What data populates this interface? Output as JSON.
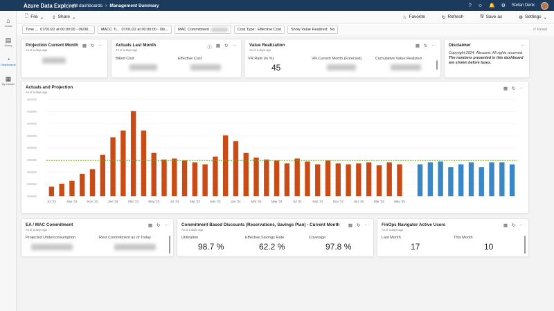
{
  "app": {
    "name": "Azure Data Explorer"
  },
  "breadcrumb": {
    "root": "All dashboards",
    "current": "Management Summary"
  },
  "header": {
    "user_name": "Stefan Denk"
  },
  "sidebar": {
    "items": [
      {
        "label": "Home",
        "icon": "home-icon"
      },
      {
        "label": "Query",
        "icon": "query-icon"
      },
      {
        "label": "Dashboards",
        "icon": "dashboard-icon"
      },
      {
        "label": "My Cluster",
        "icon": "cluster-icon"
      }
    ]
  },
  "toolbar": {
    "file": "File",
    "share": "Share",
    "favorite": "Favorite",
    "refresh": "Refresh",
    "save_as": "Save as",
    "settings": "Settings"
  },
  "filters": {
    "time_label": "Time ...",
    "time_value": "07/01/22 at 00:00:00 - 06/30...",
    "macc_label": "MACC Ti...",
    "macc_value": "07/01/22 at 00:00:00 - 06/...",
    "mac_commitment_label": "MAC Commitment",
    "cost_type_label": "Cost Type:",
    "cost_type_value": "Effective Cost",
    "show_value_label": "Show Value Realized:",
    "show_value_value": "No",
    "reset": "Reset"
  },
  "cards": {
    "projection": {
      "title": "Projection Current Month",
      "sub": "As of a days ago"
    },
    "actuals_last": {
      "title": "Actuals Last Month",
      "sub": "As of a days ago",
      "billed_label": "Billed Cost",
      "effective_label": "Effective Cost"
    },
    "value_realization": {
      "title": "Value Realization",
      "sub": "As of a days ago",
      "vr_rate_label": "VR Rate (in %)",
      "vr_rate_value": "45",
      "vr_current_label": "VR Current Month (Forecast)",
      "cumulative_label": "Cumulative Value Realized"
    },
    "disclaimer": {
      "title": "Disclaimer",
      "line1": "Copyright 2024, Alescent. All rights reserved.",
      "line2": "The numbers presented in this dashboard are shown before taxes."
    },
    "chart": {
      "title": "Actuals and Projection",
      "sub": "As of a days ago"
    },
    "ea_mac": {
      "title": "EA / MAC Commitment",
      "sub": "As of a days ago",
      "projected_label": "Projected Underconsumption",
      "rest_label": "Rest Commitment as of Today"
    },
    "commitment": {
      "title": "Commitment Based Discounts (Reservations, Savings Plan) - Current Month",
      "sub": "As of a days ago",
      "utilization_label": "Utilization",
      "utilization_value": "98.7 %",
      "savings_label": "Effective Savings Rate",
      "savings_value": "62.2 %",
      "coverage_label": "Coverage",
      "coverage_value": "97.8 %"
    },
    "finops": {
      "title": "FinOps Navigator Active Users",
      "sub": "As of a days ago",
      "last_label": "Last Month",
      "last_value": "17",
      "this_label": "This Month",
      "this_value": "10"
    }
  },
  "colors": {
    "actual": "#c94c16",
    "projection": "#3a87c8",
    "target_line": "#6aaa2a",
    "topbar": "#1b3a5c"
  },
  "chart_data": {
    "type": "bar",
    "x_tick_labels": [
      "Jul '22",
      "Sep '22",
      "Nov '22",
      "Jan '23",
      "Mar '23",
      "May '23",
      "Jul '23",
      "Sep '23",
      "Nov '23",
      "Jan '24",
      "Mar '24",
      "May '24",
      "Jul '24",
      "Sep '24",
      "Nov '24",
      "Jan '25",
      "Mar '25",
      "May '25"
    ],
    "series": [
      {
        "values": [
          0.1,
          0.13,
          0.16,
          0.23,
          0.28,
          0.43,
          0.61,
          0.68,
          0.88,
          0.68,
          0.45,
          0.38,
          0.39,
          0.37,
          0.35,
          0.33,
          0.41,
          0.63,
          0.57,
          0.45,
          0.4,
          0.38,
          0.37,
          0.34,
          0.39,
          0.36,
          0.33,
          0.37,
          0.34,
          0.33,
          0.34,
          0.35,
          0.32,
          0.35,
          0.33
        ]
      },
      {
        "values": [
          null,
          null,
          null,
          null,
          null,
          null,
          null,
          null,
          null,
          null,
          null,
          null,
          null,
          null,
          null,
          null,
          null,
          null,
          null,
          null,
          null,
          null,
          null,
          null,
          null,
          null,
          null,
          null,
          null,
          null,
          null,
          null,
          null,
          null,
          null,
          null,
          0.33,
          0.35,
          0.36,
          0.3,
          0.33,
          0.35,
          0.3,
          0.35,
          0.35,
          0.33
        ]
      }
    ],
    "target_value": 0.37,
    "ylim": [
      0,
      1
    ],
    "grid": true
  }
}
